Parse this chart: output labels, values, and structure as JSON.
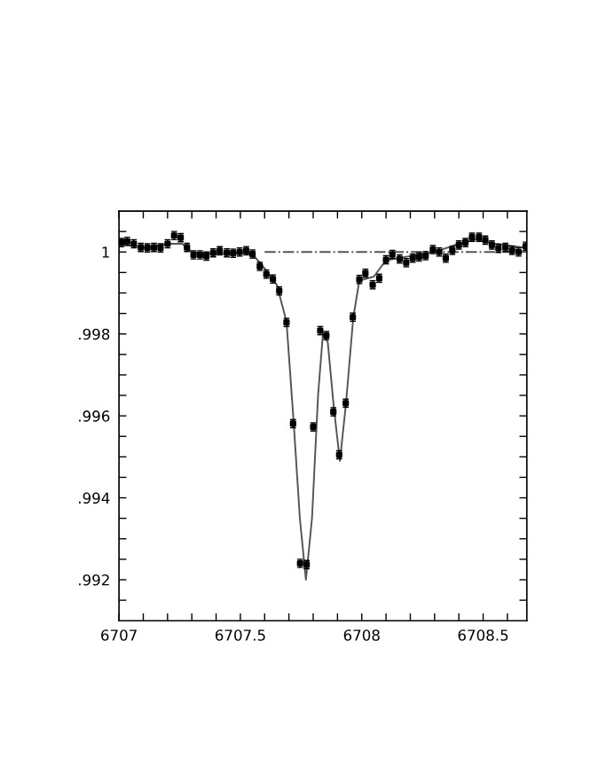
{
  "chart_data": {
    "type": "scatter",
    "xlim": [
      6707,
      6708.68
    ],
    "ylim": [
      0.991,
      1.001
    ],
    "xticks": [
      6707,
      {
        "value": 6707.1,
        "label": null
      },
      {
        "value": 6707.2,
        "label": null
      },
      {
        "value": 6707.3,
        "label": null
      },
      {
        "value": 6707.4,
        "label": null
      },
      6707.5,
      {
        "value": 6707.6,
        "label": null
      },
      {
        "value": 6707.7,
        "label": null
      },
      {
        "value": 6707.8,
        "label": null
      },
      {
        "value": 6707.9,
        "label": null
      },
      6708,
      {
        "value": 6708.1,
        "label": null
      },
      {
        "value": 6708.2,
        "label": null
      },
      {
        "value": 6708.3,
        "label": null
      },
      {
        "value": 6708.4,
        "label": null
      },
      6708.5,
      {
        "value": 6708.6,
        "label": null
      }
    ],
    "yticks": [
      {
        "value": 0.9915,
        "label": null
      },
      {
        "value": 0.992,
        "label": ".992"
      },
      {
        "value": 0.9925,
        "label": null
      },
      {
        "value": 0.993,
        "label": null
      },
      {
        "value": 0.9935,
        "label": null
      },
      {
        "value": 0.994,
        "label": ".994"
      },
      {
        "value": 0.9945,
        "label": null
      },
      {
        "value": 0.995,
        "label": null
      },
      {
        "value": 0.9955,
        "label": null
      },
      {
        "value": 0.996,
        "label": ".996"
      },
      {
        "value": 0.9965,
        "label": null
      },
      {
        "value": 0.997,
        "label": null
      },
      {
        "value": 0.9975,
        "label": null
      },
      {
        "value": 0.998,
        "label": ".998"
      },
      {
        "value": 0.9985,
        "label": null
      },
      {
        "value": 0.999,
        "label": null
      },
      {
        "value": 0.9995,
        "label": null
      },
      {
        "value": 1,
        "label": "1"
      },
      {
        "value": 1.0005,
        "label": null
      }
    ],
    "grid": false,
    "legend": false,
    "series": [
      {
        "type": "line",
        "color": "#555555",
        "line_style": "solid",
        "marker": "none",
        "x": [
          6707.0,
          6707.1,
          6707.2,
          6707.26,
          6707.3,
          6707.4,
          6707.5,
          6707.55,
          6707.6,
          6707.65,
          6707.69,
          6707.72,
          6707.745,
          6707.77,
          6707.795,
          6707.82,
          6707.84,
          6707.86,
          6707.885,
          6707.91,
          6707.935,
          6707.965,
          6707.99,
          6708.05,
          6708.1,
          6708.2,
          6708.3,
          6708.4,
          6708.47,
          6708.55,
          6708.68
        ],
        "values": [
          1.0002,
          1.0001,
          1.0002,
          1.0002,
          1.0,
          0.99995,
          0.99998,
          0.99995,
          0.9996,
          0.9992,
          0.9983,
          0.9958,
          0.9935,
          0.992,
          0.9935,
          0.9965,
          0.998,
          0.9978,
          0.9962,
          0.9949,
          0.9963,
          0.9984,
          0.9993,
          0.9994,
          0.9998,
          0.9999,
          1.0,
          1.0002,
          1.0003,
          1.0002,
          1.0001
        ]
      },
      {
        "type": "line",
        "color": "#555555",
        "line_style": "dashdot",
        "marker": "none",
        "x": [
          6707.6,
          6708.68
        ],
        "values": [
          1.0,
          1.0
        ]
      },
      {
        "color": "#000000",
        "marker": "square",
        "x": [
          6707.01,
          6707.034,
          6707.061,
          6707.09,
          6707.117,
          6707.144,
          6707.171,
          6707.2,
          6707.227,
          6707.254,
          6707.28,
          6707.307,
          6707.334,
          6707.36,
          6707.388,
          6707.415,
          6707.444,
          6707.47,
          6707.497,
          6707.524,
          6707.55,
          6707.58,
          6707.607,
          6707.634,
          6707.66,
          6707.69,
          6707.717,
          6707.746,
          6707.773,
          6707.8,
          6707.829,
          6707.854,
          6707.883,
          6707.907,
          6707.934,
          6707.963,
          6707.99,
          6708.015,
          6708.045,
          6708.072,
          6708.1,
          6708.126,
          6708.156,
          6708.183,
          6708.21,
          6708.236,
          6708.263,
          6708.293,
          6708.319,
          6708.346,
          6708.373,
          6708.4,
          6708.427,
          6708.454,
          6708.483,
          6708.509,
          6708.536,
          6708.563,
          6708.592,
          6708.619,
          6708.646,
          6708.675
        ],
        "values": [
          1.00023,
          1.00026,
          1.0002,
          1.00011,
          1.0001,
          1.00011,
          1.0001,
          1.0002,
          1.0004,
          1.00035,
          1.00011,
          0.99993,
          0.99993,
          0.9999,
          0.99998,
          1.00003,
          0.99998,
          0.99997,
          1.0,
          1.00003,
          0.99995,
          0.99965,
          0.99946,
          0.99934,
          0.99905,
          0.99828,
          0.99581,
          0.9924,
          0.99237,
          0.99573,
          0.99808,
          0.99796,
          0.9961,
          0.99505,
          0.99631,
          0.99841,
          0.99933,
          0.99948,
          0.9992,
          0.99936,
          0.99981,
          0.99994,
          0.99983,
          0.99974,
          0.99985,
          0.99988,
          0.99991,
          1.00006,
          1.0,
          0.99985,
          1.00004,
          1.00017,
          1.00023,
          1.00036,
          1.00036,
          1.00029,
          1.00017,
          1.00009,
          1.00011,
          1.00004,
          1.0,
          1.00014
        ],
        "errors": [
          0.0001,
          0.0001,
          0.0001,
          0.0001,
          0.0001,
          0.0001,
          0.0001,
          0.0001,
          0.0001,
          0.0001,
          0.0001,
          0.0001,
          0.0001,
          0.0001,
          0.0001,
          0.0001,
          0.0001,
          0.0001,
          0.0001,
          0.0001,
          0.0001,
          0.0001,
          0.0001,
          0.0001,
          0.0001,
          0.0001,
          0.0001,
          0.0001,
          0.0001,
          0.0001,
          0.0001,
          0.0001,
          0.0001,
          0.0001,
          0.0001,
          0.0001,
          0.0001,
          0.0001,
          0.0001,
          0.0001,
          0.0001,
          0.0001,
          0.0001,
          0.0001,
          0.0001,
          0.0001,
          0.0001,
          0.0001,
          0.0001,
          0.0001,
          0.0001,
          0.0001,
          0.0001,
          0.0001,
          0.0001,
          0.0001,
          0.0001,
          0.0001,
          0.0001,
          0.0001,
          0.0001,
          0.0001
        ]
      }
    ]
  }
}
